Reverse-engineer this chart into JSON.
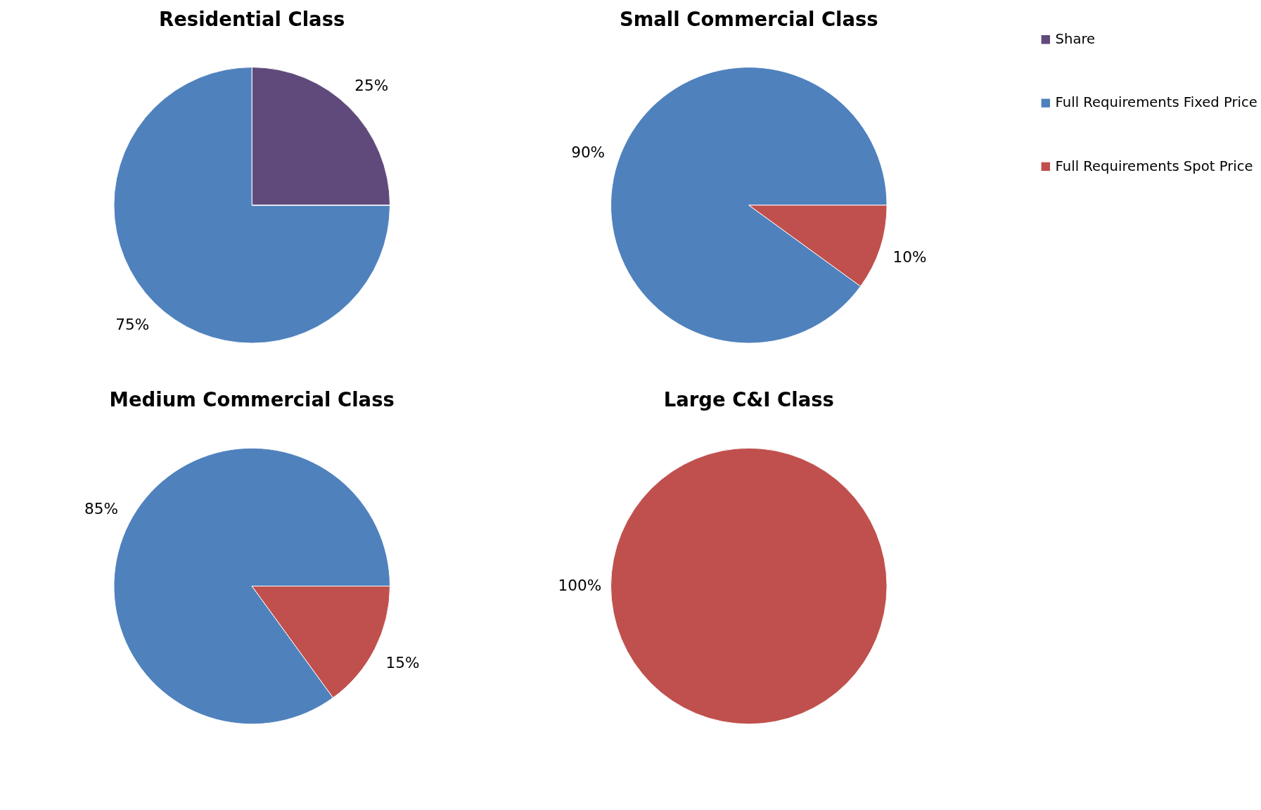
{
  "chart_data": [
    {
      "type": "pie",
      "title": "Residential Class",
      "categories": [
        "Share",
        "Full Requirements Fixed Price",
        "Full Requirements Spot Price"
      ],
      "colors": [
        "#604a7b",
        "#4f81bd",
        "#c0504d"
      ],
      "values": [
        25,
        75,
        0
      ],
      "value_labels": [
        "25%",
        "75%",
        null
      ],
      "legend": "right"
    },
    {
      "type": "pie",
      "title": "Small Commercial Class",
      "categories": [
        null,
        null,
        null
      ],
      "colors": [
        "#604a7b",
        "#4f81bd",
        "#c0504d"
      ],
      "values": [
        0,
        90,
        10
      ],
      "value_labels": [
        null,
        "90%",
        "10%"
      ]
    },
    {
      "type": "pie",
      "title": "Medium Commercial Class",
      "categories": [
        null,
        null,
        null
      ],
      "colors": [
        "#604a7b",
        "#4f81bd",
        "#c0504d"
      ],
      "values": [
        0,
        85,
        15
      ],
      "value_labels": [
        null,
        "85%",
        "15%"
      ]
    },
    {
      "type": "pie",
      "title": "Large C&I Class",
      "categories": [
        null,
        null,
        null
      ],
      "colors": [
        "#604a7b",
        "#4f81bd",
        "#c0504d"
      ],
      "values": [
        0,
        0,
        100
      ],
      "value_labels": [
        null,
        null,
        "100%"
      ]
    }
  ]
}
